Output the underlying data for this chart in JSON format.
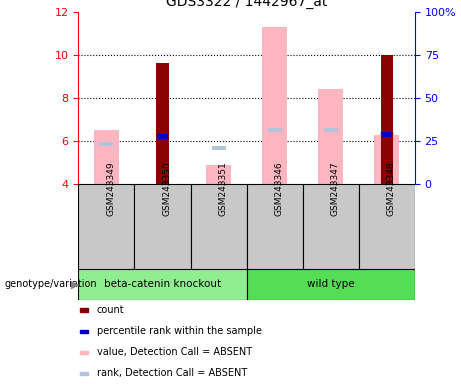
{
  "title": "GDS3322 / 1442967_at",
  "samples": [
    "GSM243349",
    "GSM243350",
    "GSM243351",
    "GSM243346",
    "GSM243347",
    "GSM243348"
  ],
  "groups": [
    {
      "name": "beta-catenin knockout",
      "count": 3,
      "color": "#90EE90"
    },
    {
      "name": "wild type",
      "count": 3,
      "color": "#55DD55"
    }
  ],
  "ylim_left": [
    4,
    12
  ],
  "ylim_right": [
    0,
    100
  ],
  "yticks_left": [
    4,
    6,
    8,
    10,
    12
  ],
  "yticks_right": [
    0,
    25,
    50,
    75,
    100
  ],
  "count_color": "#8B0000",
  "rank_color": "#0000CC",
  "value_absent_color": "#FFB6C1",
  "rank_absent_color": "#B0C4DE",
  "count_values": [
    0,
    9.6,
    0,
    0,
    0,
    10.0
  ],
  "rank_values": [
    0,
    6.2,
    0,
    0,
    0,
    6.3
  ],
  "value_absent_values": [
    6.5,
    0,
    4.9,
    11.3,
    8.4,
    6.3
  ],
  "rank_absent_values": [
    5.85,
    0,
    5.7,
    6.5,
    6.5,
    6.35
  ],
  "count_base": 4,
  "legend_items": [
    {
      "label": "count",
      "color": "#8B0000"
    },
    {
      "label": "percentile rank within the sample",
      "color": "#0000CC"
    },
    {
      "label": "value, Detection Call = ABSENT",
      "color": "#FFB6C1"
    },
    {
      "label": "rank, Detection Call = ABSENT",
      "color": "#B0C4DE"
    }
  ]
}
